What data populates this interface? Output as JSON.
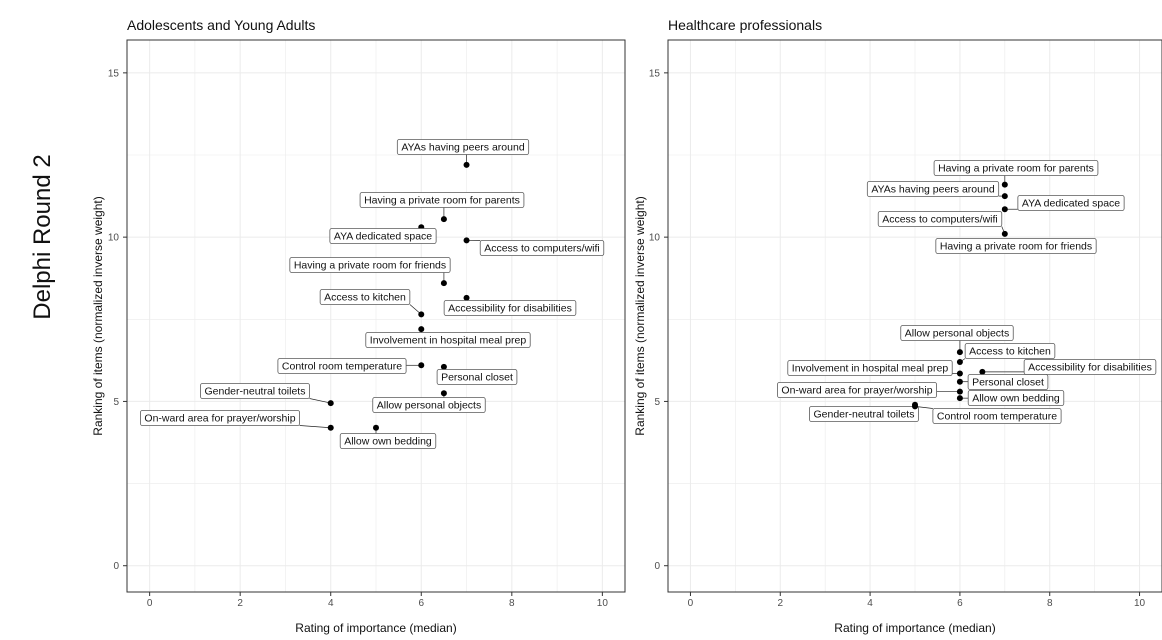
{
  "page": {
    "row_title": "Delphi Round 2"
  },
  "chart_data": [
    {
      "type": "scatter",
      "title": "Adolescents and Young Adults",
      "xlabel": "Rating of importance (median)",
      "ylabel": "Ranking of items (normalized inverse weight)",
      "xlim": [
        -0.5,
        10.5
      ],
      "ylim": [
        -0.8,
        16
      ],
      "xticks": [
        0,
        2,
        4,
        6,
        8,
        10
      ],
      "yticks": [
        0,
        5,
        10,
        15
      ],
      "grid": true,
      "points": [
        {
          "label": "AYAs having peers around",
          "x": 7.0,
          "y": 12.2
        },
        {
          "label": "Having a private room for parents",
          "x": 6.5,
          "y": 10.55
        },
        {
          "label": "AYA dedicated space",
          "x": 6.0,
          "y": 10.3
        },
        {
          "label": "Access to computers/wifi",
          "x": 7.0,
          "y": 9.9
        },
        {
          "label": "Having a private room for friends",
          "x": 6.5,
          "y": 8.6
        },
        {
          "label": "Accessibility for disabilities",
          "x": 7.0,
          "y": 8.15
        },
        {
          "label": "Access to kitchen",
          "x": 6.0,
          "y": 7.65
        },
        {
          "label": "Involvement in hospital meal prep",
          "x": 6.0,
          "y": 7.2
        },
        {
          "label": "Control room temperature",
          "x": 6.0,
          "y": 6.1
        },
        {
          "label": "Personal closet",
          "x": 6.5,
          "y": 6.05
        },
        {
          "label": "Allow personal objects",
          "x": 6.5,
          "y": 5.25
        },
        {
          "label": "Gender-neutral toilets",
          "x": 4.0,
          "y": 4.95
        },
        {
          "label": "On-ward area for prayer/worship",
          "x": 4.0,
          "y": 4.2
        },
        {
          "label": "Allow own bedding",
          "x": 5.0,
          "y": 4.2
        }
      ]
    },
    {
      "type": "scatter",
      "title": "Healthcare professionals",
      "xlabel": "Rating of importance (median)",
      "ylabel": "Ranking of items (normalized inverse weight)",
      "xlim": [
        -0.5,
        10.5
      ],
      "ylim": [
        -0.8,
        16
      ],
      "xticks": [
        0,
        2,
        4,
        6,
        8,
        10
      ],
      "yticks": [
        0,
        5,
        10,
        15
      ],
      "grid": true,
      "points": [
        {
          "label": "Having a private room for parents",
          "x": 7.0,
          "y": 11.6
        },
        {
          "label": "AYAs having peers around",
          "x": 7.0,
          "y": 11.25
        },
        {
          "label": "AYA dedicated space",
          "x": 7.0,
          "y": 10.85
        },
        {
          "label": "Access to computers/wifi",
          "x": 7.0,
          "y": 10.1
        },
        {
          "label": "Having a private room for friends",
          "x": 7.0,
          "y": 9.85
        },
        {
          "label": "Allow personal objects",
          "x": 6.0,
          "y": 6.5
        },
        {
          "label": "Access to kitchen",
          "x": 6.0,
          "y": 6.2
        },
        {
          "label": "Accessibility for disabilities",
          "x": 6.5,
          "y": 5.9
        },
        {
          "label": "Involvement in hospital meal prep",
          "x": 6.0,
          "y": 5.85
        },
        {
          "label": "Personal closet",
          "x": 6.0,
          "y": 5.6
        },
        {
          "label": "On-ward area for prayer/worship",
          "x": 6.0,
          "y": 5.3
        },
        {
          "label": "Allow own bedding",
          "x": 6.0,
          "y": 5.1
        },
        {
          "label": "Gender-neutral toilets",
          "x": 5.0,
          "y": 4.9
        },
        {
          "label": "Control room temperature",
          "x": 5.0,
          "y": 4.85
        }
      ]
    }
  ]
}
